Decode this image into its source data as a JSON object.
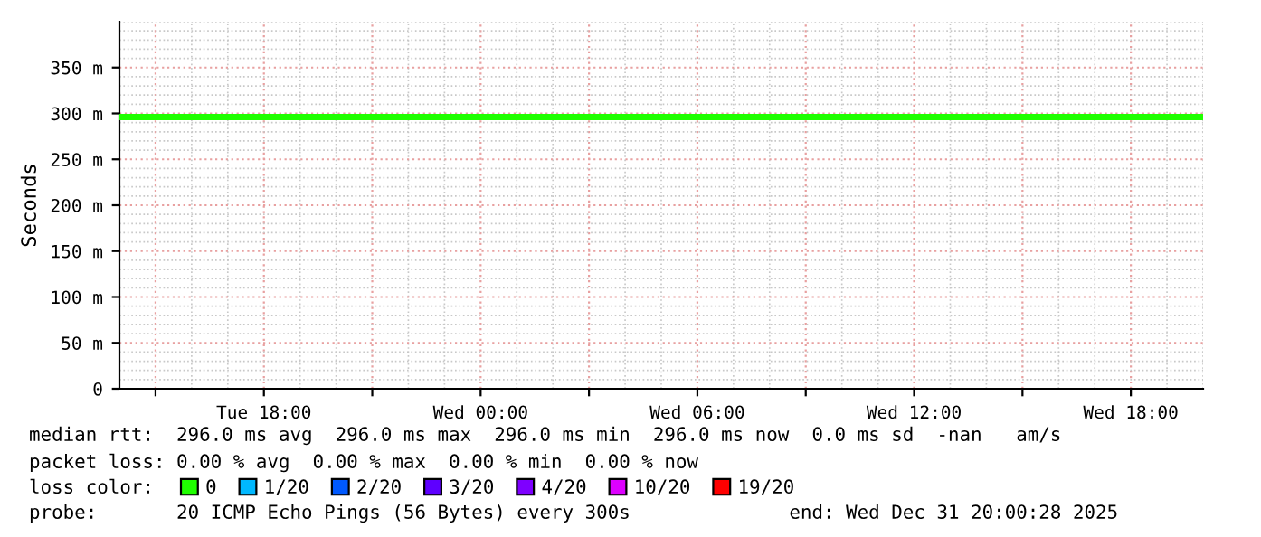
{
  "chart_data": {
    "type": "line",
    "ylabel": "Seconds",
    "x": [
      "2025-12-30T14:00",
      "2025-12-31T20:00"
    ],
    "series": [
      {
        "name": "0",
        "color": "#20ff00",
        "values": [
          296,
          296
        ]
      },
      {
        "name": "1/20",
        "color": "#00b8ff",
        "values": [
          null,
          null
        ]
      },
      {
        "name": "2/20",
        "color": "#0059ff",
        "values": [
          null,
          null
        ]
      },
      {
        "name": "3/20",
        "color": "#5e00ff",
        "values": [
          null,
          null
        ]
      },
      {
        "name": "4/20",
        "color": "#7e00ff",
        "values": [
          null,
          null
        ]
      },
      {
        "name": "10/20",
        "color": "#dd00ff",
        "values": [
          null,
          null
        ]
      },
      {
        "name": "19/20",
        "color": "#ff0000",
        "values": [
          null,
          null
        ]
      }
    ],
    "xlim": [
      "2025-12-30T14:00",
      "2025-12-31T20:00"
    ],
    "xticks": [
      {
        "value": "2025-12-30T15:00",
        "label": null
      },
      {
        "value": "2025-12-30T18:00",
        "label": "Tue 18:00"
      },
      {
        "value": "2025-12-30T21:00",
        "label": null
      },
      {
        "value": "2025-12-31T00:00",
        "label": "Wed 00:00"
      },
      {
        "value": "2025-12-31T03:00",
        "label": null
      },
      {
        "value": "2025-12-31T06:00",
        "label": "Wed 06:00"
      },
      {
        "value": "2025-12-31T09:00",
        "label": null
      },
      {
        "value": "2025-12-31T12:00",
        "label": "Wed 12:00"
      },
      {
        "value": "2025-12-31T15:00",
        "label": null
      },
      {
        "value": "2025-12-31T18:00",
        "label": "Wed 18:00"
      }
    ],
    "ylim": [
      0,
      400
    ],
    "yticks": [
      0,
      {
        "value": 50,
        "label": "50 m"
      },
      {
        "value": 100,
        "label": "100 m"
      },
      {
        "value": 150,
        "label": "150 m"
      },
      {
        "value": 200,
        "label": "200 m"
      },
      {
        "value": 250,
        "label": "250 m"
      },
      {
        "value": 300,
        "label": "300 m"
      },
      {
        "value": 350,
        "label": "350 m"
      }
    ],
    "grid": true,
    "legend": "bottom",
    "marker": "none",
    "line_style": "solid",
    "annotations": [
      "median rtt:  296.0 ms avg  296.0 ms max  296.0 ms min  296.0 ms now  0.0 ms sd  -nan   am/s",
      "packet loss: 0.00 % avg  0.00 % max  0.00 % min  0.00 % now",
      "loss color:",
      "probe:       20 ICMP Echo Pings (56 Bytes) every 300s              end: Wed Dec 31 20:00:28 2025"
    ]
  }
}
